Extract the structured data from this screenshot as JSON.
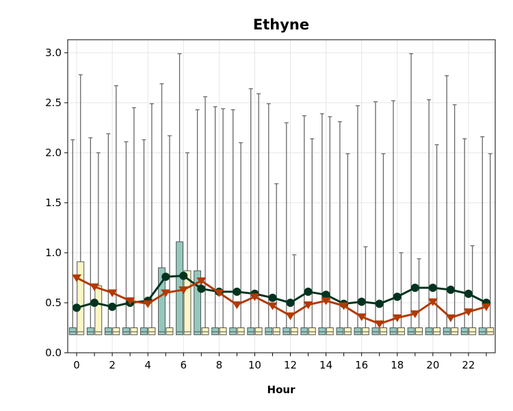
{
  "chart_data": {
    "type": "box",
    "title": "Ethyne",
    "xlabel": "Hour",
    "ylabel": "",
    "xlim": [
      -0.5,
      23.5
    ],
    "ylim": [
      0.0,
      3.13
    ],
    "x_ticks": [
      0,
      2,
      4,
      6,
      8,
      10,
      12,
      14,
      16,
      18,
      20,
      22
    ],
    "x_tick_labels": [
      "0",
      "2",
      "4",
      "6",
      "8",
      "10",
      "12",
      "14",
      "16",
      "18",
      "20",
      "22"
    ],
    "y_ticks": [
      0.0,
      0.5,
      1.0,
      1.5,
      2.0,
      2.5,
      3.0
    ],
    "y_tick_labels": [
      "0.0",
      "0.5",
      "1.0",
      "1.5",
      "2.0",
      "2.5",
      "3.0"
    ],
    "grid": true,
    "colors": {
      "box_series_a": "#94c8bd",
      "box_series_b": "#fbf6c3",
      "line_series_a": "#00331f",
      "line_series_b": "#b23a00",
      "whisker": "#666666"
    },
    "box_series": [
      {
        "q1": [
          0.18,
          0.18,
          0.18,
          0.18,
          0.18,
          0.18,
          0.18,
          0.18,
          0.18,
          0.18,
          0.18,
          0.18,
          0.18,
          0.18,
          0.18,
          0.18,
          0.18,
          0.18,
          0.18,
          0.18,
          0.18,
          0.18,
          0.18,
          0.18
        ],
        "median": [
          0.21,
          0.21,
          0.21,
          0.21,
          0.21,
          0.21,
          0.21,
          0.21,
          0.21,
          0.21,
          0.21,
          0.21,
          0.21,
          0.21,
          0.21,
          0.21,
          0.21,
          0.21,
          0.21,
          0.21,
          0.21,
          0.21,
          0.21,
          0.21
        ],
        "q3": [
          0.25,
          0.25,
          0.25,
          0.25,
          0.25,
          0.85,
          1.11,
          0.82,
          0.25,
          0.25,
          0.25,
          0.25,
          0.25,
          0.25,
          0.25,
          0.25,
          0.25,
          0.25,
          0.25,
          0.25,
          0.25,
          0.25,
          0.25,
          0.25
        ],
        "whisker_high": [
          2.13,
          2.15,
          2.19,
          2.11,
          2.13,
          2.69,
          2.99,
          2.43,
          2.46,
          2.43,
          2.64,
          2.49,
          2.3,
          2.37,
          2.39,
          2.31,
          2.47,
          2.51,
          2.52,
          2.99,
          2.53,
          2.77,
          2.14,
          2.16
        ]
      },
      {
        "q1": [
          0.18,
          0.18,
          0.18,
          0.18,
          0.18,
          0.18,
          0.18,
          0.18,
          0.18,
          0.18,
          0.18,
          0.18,
          0.18,
          0.18,
          0.18,
          0.18,
          0.18,
          0.18,
          0.18,
          0.18,
          0.18,
          0.18,
          0.18,
          0.18
        ],
        "median": [
          0.21,
          0.21,
          0.21,
          0.21,
          0.21,
          0.21,
          0.21,
          0.21,
          0.21,
          0.21,
          0.21,
          0.21,
          0.21,
          0.21,
          0.21,
          0.21,
          0.21,
          0.21,
          0.21,
          0.21,
          0.21,
          0.21,
          0.21,
          0.21
        ],
        "q3": [
          0.91,
          0.67,
          0.25,
          0.25,
          0.25,
          0.25,
          0.82,
          0.25,
          0.25,
          0.25,
          0.25,
          0.25,
          0.25,
          0.25,
          0.25,
          0.25,
          0.25,
          0.25,
          0.25,
          0.25,
          0.25,
          0.25,
          0.25,
          0.25
        ],
        "whisker_high": [
          2.78,
          2.0,
          2.67,
          2.45,
          2.49,
          2.17,
          2.0,
          2.56,
          2.44,
          2.1,
          2.59,
          1.69,
          0.98,
          2.14,
          2.36,
          1.99,
          1.06,
          1.99,
          1.0,
          0.94,
          2.08,
          2.48,
          1.07,
          1.99
        ]
      }
    ],
    "line_series": [
      {
        "marker": "circle",
        "values": [
          0.45,
          0.5,
          0.46,
          0.5,
          0.52,
          0.76,
          0.77,
          0.64,
          0.61,
          0.61,
          0.59,
          0.55,
          0.5,
          0.61,
          0.58,
          0.49,
          0.51,
          0.49,
          0.56,
          0.65,
          0.65,
          0.63,
          0.59,
          0.5
        ]
      },
      {
        "marker": "triangle-down",
        "values": [
          0.75,
          0.66,
          0.6,
          0.52,
          0.49,
          0.6,
          0.63,
          0.72,
          0.6,
          0.48,
          0.56,
          0.47,
          0.37,
          0.48,
          0.52,
          0.47,
          0.36,
          0.29,
          0.35,
          0.39,
          0.51,
          0.35,
          0.41,
          0.46
        ]
      }
    ]
  }
}
